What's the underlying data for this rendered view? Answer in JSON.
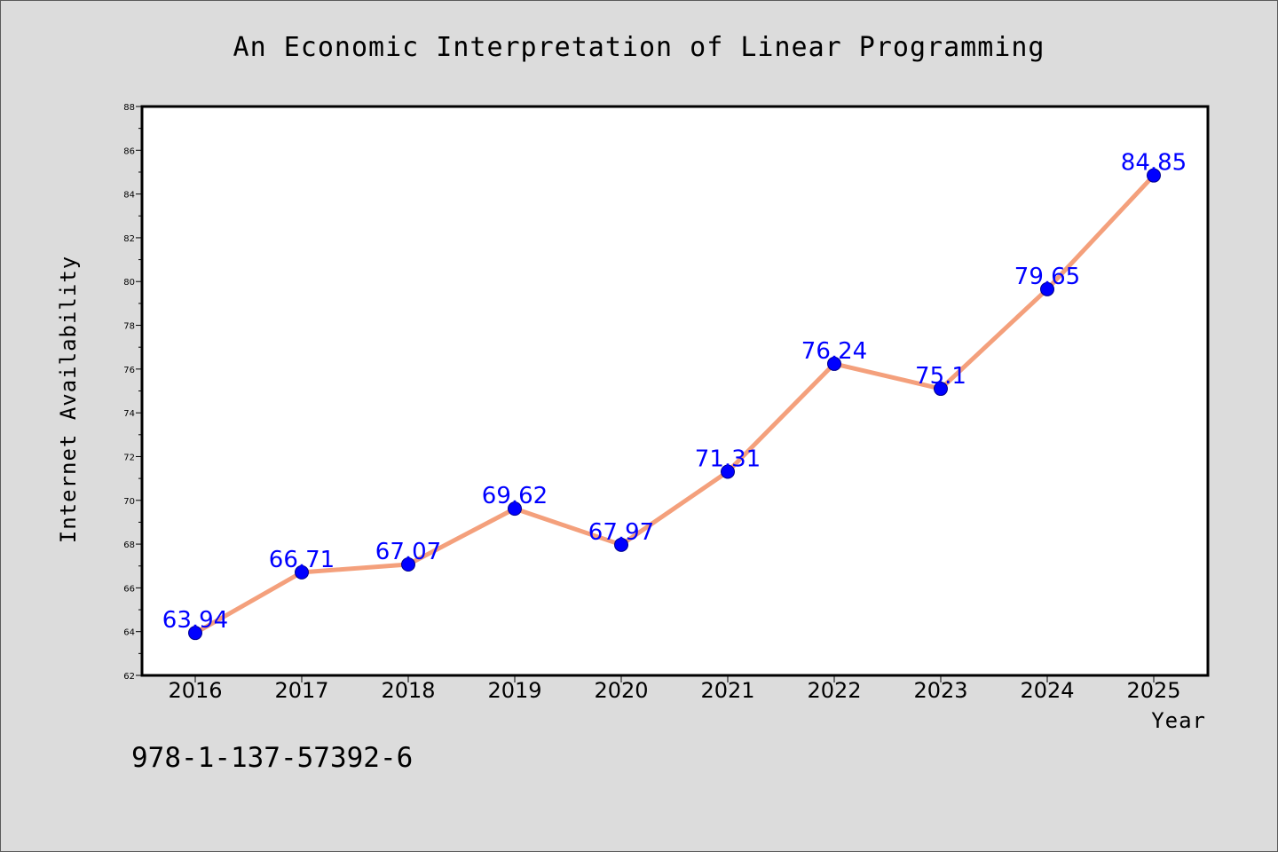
{
  "chart_data": {
    "type": "line",
    "title": "An Economic Interpretation of Linear Programming",
    "xlabel": "Year",
    "ylabel": "Internet Availability",
    "categories": [
      "2016",
      "2017",
      "2018",
      "2019",
      "2020",
      "2021",
      "2022",
      "2023",
      "2024",
      "2025"
    ],
    "values": [
      63.94,
      66.71,
      67.07,
      69.62,
      67.97,
      71.31,
      76.24,
      75.1,
      79.65,
      84.85
    ],
    "data_labels": [
      "63.94",
      "66.71",
      "67.07",
      "69.62",
      "67.97",
      "71.31",
      "76.24",
      "75.1",
      "79.65",
      "84.85"
    ],
    "ylim": [
      62,
      88
    ],
    "yticks": [
      62,
      64,
      66,
      68,
      70,
      72,
      74,
      76,
      78,
      80,
      82,
      84,
      86,
      88
    ],
    "grid": false,
    "legend": "none",
    "line_color": "#f4a07c",
    "marker_color": "#0000ff",
    "label_color": "#0000ff"
  },
  "footer_text": "978-1-137-57392-6"
}
